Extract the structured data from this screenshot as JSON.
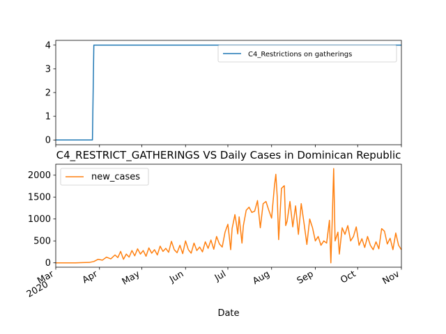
{
  "chart_data": [
    {
      "type": "line",
      "title": "",
      "xlabel": "",
      "ylabel": "",
      "xlim": [
        "2020-03-01",
        "2020-11-01"
      ],
      "ylim": [
        -0.2,
        4.2
      ],
      "yticks": [
        0,
        1,
        2,
        3,
        4
      ],
      "grid": false,
      "legend_position": "upper right",
      "series": [
        {
          "name": "C4_Restrictions on gatherings",
          "color": "#1f77b4",
          "points": [
            [
              "2020-03-01",
              0
            ],
            [
              "2020-03-27",
              0
            ],
            [
              "2020-03-28",
              4
            ],
            [
              "2020-11-01",
              4
            ]
          ]
        }
      ]
    },
    {
      "type": "line",
      "title": "C4_RESTRICT_GATHERINGS VS Daily Cases in Dominican Republic",
      "xlabel": "Date",
      "ylabel": "",
      "xlim": [
        "2020-03-01",
        "2020-11-01"
      ],
      "ylim": [
        -100,
        2250
      ],
      "yticks": [
        0,
        500,
        1000,
        1500,
        2000
      ],
      "grid": false,
      "legend_position": "upper left",
      "series": [
        {
          "name": "new_cases",
          "color": "#ff7f0e",
          "points": [
            [
              "2020-03-01",
              0
            ],
            [
              "2020-03-15",
              0
            ],
            [
              "2020-03-20",
              5
            ],
            [
              "2020-03-25",
              10
            ],
            [
              "2020-03-28",
              30
            ],
            [
              "2020-03-31",
              80
            ],
            [
              "2020-04-03",
              60
            ],
            [
              "2020-04-06",
              130
            ],
            [
              "2020-04-09",
              90
            ],
            [
              "2020-04-12",
              180
            ],
            [
              "2020-04-14",
              120
            ],
            [
              "2020-04-16",
              260
            ],
            [
              "2020-04-18",
              80
            ],
            [
              "2020-04-20",
              200
            ],
            [
              "2020-04-22",
              130
            ],
            [
              "2020-04-24",
              280
            ],
            [
              "2020-04-26",
              160
            ],
            [
              "2020-04-28",
              320
            ],
            [
              "2020-04-30",
              200
            ],
            [
              "2020-05-02",
              280
            ],
            [
              "2020-05-04",
              150
            ],
            [
              "2020-05-06",
              340
            ],
            [
              "2020-05-08",
              220
            ],
            [
              "2020-05-10",
              300
            ],
            [
              "2020-05-12",
              180
            ],
            [
              "2020-05-14",
              380
            ],
            [
              "2020-05-16",
              260
            ],
            [
              "2020-05-18",
              330
            ],
            [
              "2020-05-20",
              240
            ],
            [
              "2020-05-22",
              490
            ],
            [
              "2020-05-24",
              300
            ],
            [
              "2020-05-26",
              230
            ],
            [
              "2020-05-28",
              400
            ],
            [
              "2020-05-30",
              210
            ],
            [
              "2020-06-01",
              500
            ],
            [
              "2020-06-03",
              300
            ],
            [
              "2020-06-05",
              220
            ],
            [
              "2020-06-07",
              450
            ],
            [
              "2020-06-09",
              280
            ],
            [
              "2020-06-11",
              360
            ],
            [
              "2020-06-13",
              250
            ],
            [
              "2020-06-15",
              480
            ],
            [
              "2020-06-17",
              330
            ],
            [
              "2020-06-19",
              520
            ],
            [
              "2020-06-21",
              310
            ],
            [
              "2020-06-23",
              600
            ],
            [
              "2020-06-25",
              430
            ],
            [
              "2020-06-27",
              360
            ],
            [
              "2020-06-29",
              700
            ],
            [
              "2020-07-01",
              880
            ],
            [
              "2020-07-02",
              600
            ],
            [
              "2020-07-03",
              300
            ],
            [
              "2020-07-04",
              780
            ],
            [
              "2020-07-06",
              1100
            ],
            [
              "2020-07-07",
              900
            ],
            [
              "2020-07-08",
              660
            ],
            [
              "2020-07-09",
              1050
            ],
            [
              "2020-07-11",
              450
            ],
            [
              "2020-07-12",
              850
            ],
            [
              "2020-07-14",
              1200
            ],
            [
              "2020-07-16",
              1270
            ],
            [
              "2020-07-18",
              1150
            ],
            [
              "2020-07-20",
              1180
            ],
            [
              "2020-07-22",
              1420
            ],
            [
              "2020-07-24",
              800
            ],
            [
              "2020-07-26",
              1350
            ],
            [
              "2020-07-28",
              1400
            ],
            [
              "2020-07-30",
              1200
            ],
            [
              "2020-08-01",
              1020
            ],
            [
              "2020-08-03",
              1750
            ],
            [
              "2020-08-04",
              2020
            ],
            [
              "2020-08-05",
              1500
            ],
            [
              "2020-08-06",
              530
            ],
            [
              "2020-08-08",
              1700
            ],
            [
              "2020-08-10",
              1760
            ],
            [
              "2020-08-11",
              850
            ],
            [
              "2020-08-12",
              950
            ],
            [
              "2020-08-14",
              1400
            ],
            [
              "2020-08-16",
              820
            ],
            [
              "2020-08-18",
              1300
            ],
            [
              "2020-08-20",
              650
            ],
            [
              "2020-08-22",
              1350
            ],
            [
              "2020-08-24",
              900
            ],
            [
              "2020-08-26",
              420
            ],
            [
              "2020-08-28",
              1000
            ],
            [
              "2020-08-30",
              800
            ],
            [
              "2020-09-01",
              500
            ],
            [
              "2020-09-03",
              600
            ],
            [
              "2020-09-05",
              400
            ],
            [
              "2020-09-07",
              500
            ],
            [
              "2020-09-09",
              450
            ],
            [
              "2020-09-11",
              970
            ],
            [
              "2020-09-12",
              0
            ],
            [
              "2020-09-13",
              1000
            ],
            [
              "2020-09-14",
              2150
            ],
            [
              "2020-09-15",
              500
            ],
            [
              "2020-09-17",
              700
            ],
            [
              "2020-09-18",
              200
            ],
            [
              "2020-09-20",
              800
            ],
            [
              "2020-09-22",
              650
            ],
            [
              "2020-09-24",
              850
            ],
            [
              "2020-09-26",
              500
            ],
            [
              "2020-09-28",
              600
            ],
            [
              "2020-09-30",
              820
            ],
            [
              "2020-10-02",
              400
            ],
            [
              "2020-10-04",
              550
            ],
            [
              "2020-10-06",
              350
            ],
            [
              "2020-10-08",
              600
            ],
            [
              "2020-10-10",
              400
            ],
            [
              "2020-10-12",
              300
            ],
            [
              "2020-10-14",
              480
            ],
            [
              "2020-10-16",
              320
            ],
            [
              "2020-10-18",
              780
            ],
            [
              "2020-10-20",
              720
            ],
            [
              "2020-10-22",
              430
            ],
            [
              "2020-10-24",
              560
            ],
            [
              "2020-10-26",
              300
            ],
            [
              "2020-10-28",
              680
            ],
            [
              "2020-10-30",
              400
            ],
            [
              "2020-11-01",
              300
            ]
          ]
        }
      ]
    }
  ],
  "xticks": [
    {
      "date": "2020-03-01",
      "label": "Mar",
      "sublabel": "2020"
    },
    {
      "date": "2020-04-01",
      "label": "Apr",
      "sublabel": ""
    },
    {
      "date": "2020-05-01",
      "label": "May",
      "sublabel": ""
    },
    {
      "date": "2020-06-01",
      "label": "Jun",
      "sublabel": ""
    },
    {
      "date": "2020-07-01",
      "label": "Jul",
      "sublabel": ""
    },
    {
      "date": "2020-08-01",
      "label": "Aug",
      "sublabel": ""
    },
    {
      "date": "2020-09-01",
      "label": "Sep",
      "sublabel": ""
    },
    {
      "date": "2020-10-01",
      "label": "Oct",
      "sublabel": ""
    },
    {
      "date": "2020-11-01",
      "label": "Nov",
      "sublabel": ""
    }
  ]
}
